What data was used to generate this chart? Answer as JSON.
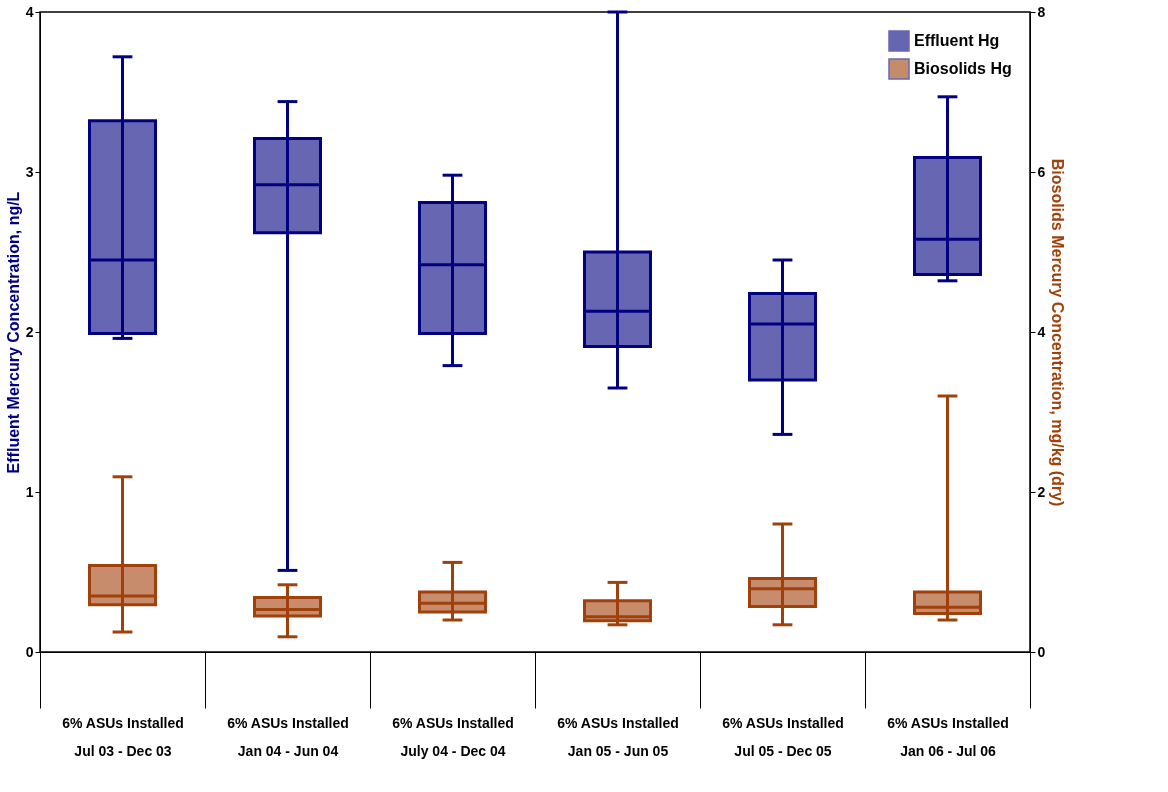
{
  "chart_data": {
    "type": "box",
    "categories": [
      "6% ASUs Installed\nJul 03 - Dec 03",
      "6% ASUs Installed\nJan 04 - Jun 04",
      "6% ASUs Installed\nJuly 04 - Dec 04",
      "6% ASUs Installed\nJan 05 - Jun 05",
      "6% ASUs Installed\nJul 05 - Dec 05",
      "6% ASUs Installed\nJan 06 - Jul 06"
    ],
    "ylabel": "Effluent Mercury Concentration, ng/L",
    "y2label": "Biosolids Mercury Concentration, mg/kg (dry)",
    "ylim": [
      0,
      4
    ],
    "yticks": [
      0,
      1,
      2,
      3,
      4
    ],
    "y2lim": [
      0,
      8
    ],
    "y2ticks": [
      0,
      2,
      4,
      6,
      8
    ],
    "grid": false,
    "legend": "top right",
    "series": [
      {
        "name": "Effluent Hg",
        "color": "#000080",
        "type": "box",
        "axis": "y",
        "boxes": [
          {
            "low": 1.96,
            "q1": 1.99,
            "median": 2.45,
            "q3": 3.32,
            "high": 3.72
          },
          {
            "low": 0.51,
            "q1": 2.62,
            "median": 2.92,
            "q3": 3.21,
            "high": 3.44
          },
          {
            "low": 1.79,
            "q1": 1.99,
            "median": 2.42,
            "q3": 2.81,
            "high": 2.98
          },
          {
            "low": 1.65,
            "q1": 1.91,
            "median": 2.13,
            "q3": 2.5,
            "high": 4.0
          },
          {
            "low": 1.36,
            "q1": 1.7,
            "median": 2.05,
            "q3": 2.24,
            "high": 2.45
          },
          {
            "low": 2.32,
            "q1": 2.36,
            "median": 2.58,
            "q3": 3.09,
            "high": 3.47
          }
        ]
      },
      {
        "name": "Biosolids Hg",
        "color": "#a0400a",
        "type": "box",
        "axis": "y2",
        "boxes": [
          {
            "low": 0.25,
            "q1": 0.59,
            "median": 0.7,
            "q3": 1.08,
            "high": 2.19
          },
          {
            "low": 0.19,
            "q1": 0.45,
            "median": 0.53,
            "q3": 0.68,
            "high": 0.84
          },
          {
            "low": 0.4,
            "q1": 0.5,
            "median": 0.61,
            "q3": 0.75,
            "high": 1.12
          },
          {
            "low": 0.34,
            "q1": 0.39,
            "median": 0.44,
            "q3": 0.64,
            "high": 0.87
          },
          {
            "low": 0.34,
            "q1": 0.57,
            "median": 0.79,
            "q3": 0.92,
            "high": 1.6
          },
          {
            "low": 0.4,
            "q1": 0.48,
            "median": 0.56,
            "q3": 0.75,
            "high": 3.2
          }
        ]
      }
    ]
  }
}
